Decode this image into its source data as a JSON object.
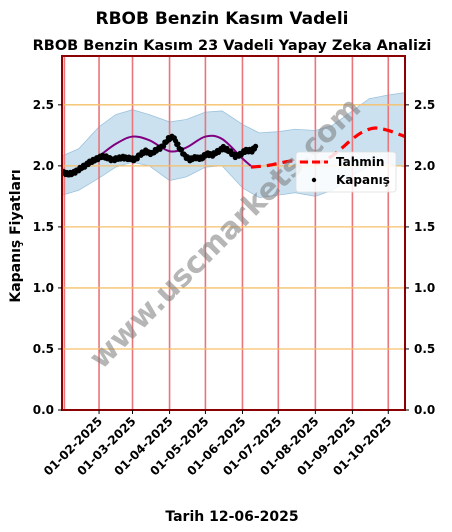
{
  "chart_data": {
    "type": "line",
    "title": "RBOB Benzin Kasım Vadeli",
    "subtitle": "RBOB Benzin Kasım 23 Vadeli Yapay Zeka Analizi",
    "ylabel": "Kapanış Fiyatları",
    "xlabel": "Tarih 12-06-2025",
    "ylim": [
      0,
      2.9
    ],
    "yticks": [
      "0.0",
      "0.5",
      "1.0",
      "1.5",
      "2.0",
      "2.5"
    ],
    "ytick_values": [
      0,
      0.5,
      1.0,
      1.5,
      2.0,
      2.5
    ],
    "xlim": [
      "2025-01-01",
      "2025-10-15"
    ],
    "xticks": [
      "01-02-2025",
      "01-03-2025",
      "01-04-2025",
      "01-05-2025",
      "01-06-2025",
      "01-07-2025",
      "01-08-2025",
      "01-09-2025",
      "01-10-2025"
    ],
    "xtick_dates": [
      "2025-02-01",
      "2025-03-01",
      "2025-04-01",
      "2025-05-01",
      "2025-06-01",
      "2025-07-01",
      "2025-08-01",
      "2025-09-01",
      "2025-10-01"
    ],
    "vertical_lines": [
      "2025-01-03",
      "2025-02-01",
      "2025-03-01",
      "2025-04-01",
      "2025-05-01",
      "2025-06-01",
      "2025-07-01",
      "2025-08-01",
      "2025-09-01",
      "2025-10-01"
    ],
    "grid": "horizontal",
    "legend": "right",
    "watermark": "www.uscmarkets.com",
    "colors": {
      "frame": "#8b0000",
      "hgrid": "#f5c06a",
      "vgrid": "#e8767a",
      "band": "#b9d7ea",
      "smooth": "#800080",
      "forecast": "#ff0000",
      "close": "#000000"
    },
    "series": [
      {
        "name": "Kapanış",
        "style": "dots",
        "x": [
          "2025-01-02",
          "2025-01-06",
          "2025-01-10",
          "2025-01-15",
          "2025-01-20",
          "2025-01-24",
          "2025-01-29",
          "2025-02-03",
          "2025-02-07",
          "2025-02-12",
          "2025-02-17",
          "2025-02-21",
          "2025-02-26",
          "2025-03-03",
          "2025-03-07",
          "2025-03-12",
          "2025-03-17",
          "2025-03-21",
          "2025-03-26",
          "2025-03-31",
          "2025-04-04",
          "2025-04-09",
          "2025-04-14",
          "2025-04-18",
          "2025-04-23",
          "2025-04-28",
          "2025-05-02",
          "2025-05-07",
          "2025-05-12",
          "2025-05-16",
          "2025-05-21",
          "2025-05-26",
          "2025-05-30",
          "2025-06-04",
          "2025-06-09",
          "2025-06-12"
        ],
        "values": [
          1.95,
          1.93,
          1.94,
          1.97,
          2.0,
          2.03,
          2.05,
          2.08,
          2.07,
          2.05,
          2.06,
          2.07,
          2.06,
          2.05,
          2.09,
          2.12,
          2.1,
          2.13,
          2.16,
          2.22,
          2.24,
          2.15,
          2.08,
          2.05,
          2.07,
          2.06,
          2.1,
          2.09,
          2.12,
          2.15,
          2.12,
          2.08,
          2.09,
          2.13,
          2.12,
          2.16
        ]
      },
      {
        "name": "",
        "style": "line",
        "x": [
          "2025-01-03",
          "2025-01-15",
          "2025-02-01",
          "2025-02-15",
          "2025-03-01",
          "2025-03-15",
          "2025-04-01",
          "2025-04-15",
          "2025-05-01",
          "2025-05-15",
          "2025-06-01",
          "2025-06-08"
        ],
        "values": [
          1.93,
          1.96,
          2.08,
          2.18,
          2.24,
          2.21,
          2.12,
          2.15,
          2.24,
          2.22,
          2.06,
          2.0
        ]
      },
      {
        "name": "Tahmin",
        "style": "dashed",
        "x": [
          "2025-06-08",
          "2025-06-20",
          "2025-07-01",
          "2025-07-12",
          "2025-07-22",
          "2025-08-01",
          "2025-08-10",
          "2025-08-20",
          "2025-09-01",
          "2025-09-10",
          "2025-09-20",
          "2025-10-01",
          "2025-10-15"
        ],
        "values": [
          1.99,
          2.0,
          2.02,
          2.04,
          2.03,
          2.02,
          2.05,
          2.12,
          2.22,
          2.28,
          2.31,
          2.29,
          2.24
        ]
      }
    ],
    "band": {
      "x": [
        "2025-01-01",
        "2025-01-15",
        "2025-02-01",
        "2025-02-15",
        "2025-03-01",
        "2025-03-15",
        "2025-04-01",
        "2025-04-15",
        "2025-05-01",
        "2025-05-15",
        "2025-06-01",
        "2025-06-15",
        "2025-07-01",
        "2025-07-15",
        "2025-08-01",
        "2025-08-15",
        "2025-09-01",
        "2025-09-15",
        "2025-10-01",
        "2025-10-15"
      ],
      "upper": [
        2.08,
        2.14,
        2.32,
        2.42,
        2.46,
        2.42,
        2.36,
        2.38,
        2.44,
        2.45,
        2.34,
        2.27,
        2.28,
        2.3,
        2.29,
        2.33,
        2.45,
        2.55,
        2.58,
        2.6
      ],
      "lower": [
        1.76,
        1.8,
        1.9,
        1.99,
        2.03,
        2.0,
        1.88,
        1.91,
        1.99,
        2.0,
        1.82,
        1.74,
        1.76,
        1.78,
        1.75,
        1.8,
        1.92,
        2.0,
        2.02,
        1.99
      ]
    }
  }
}
